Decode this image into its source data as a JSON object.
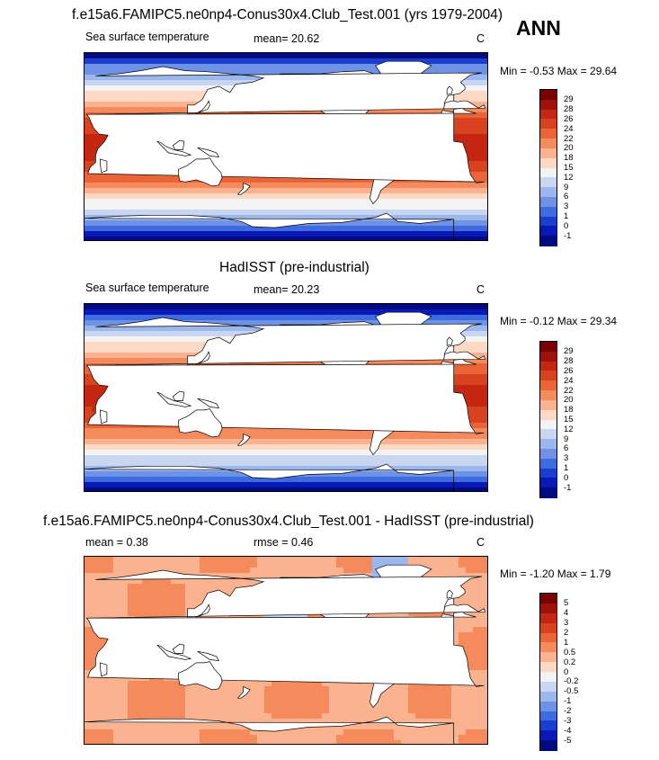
{
  "header": {
    "main_title": "f.e15a6.FAMIPC5.ne0np4-Conus30x4.Club_Test.001 (yrs 1979-2004)",
    "season": "ANN"
  },
  "chart_data": [
    {
      "type": "heatmap",
      "title": "f.e15a6.FAMIPC5.ne0np4-Conus30x4.Club_Test.001 (yrs 1979-2004)",
      "variable": "Sea surface temperature",
      "mean_text": "mean=  20.62",
      "units": "C",
      "minmax_text": "Min =  -0.53 Max =  29.64",
      "min": -0.53,
      "max": 29.64,
      "levels": [
        "29",
        "28",
        "26",
        "24",
        "22",
        "20",
        "18",
        "15",
        "12",
        "9",
        "6",
        "3",
        "1",
        "0",
        "-1"
      ],
      "colors": [
        "#7a0000",
        "#a01208",
        "#c42612",
        "#d9421e",
        "#eb6437",
        "#f58a5d",
        "#fbb28e",
        "#fdd9c4",
        "#f3f3f3",
        "#c8d6f2",
        "#9cb7ee",
        "#6e92e6",
        "#3f6be0",
        "#1a3fd0",
        "#0819b8",
        "#000a82"
      ]
    },
    {
      "type": "heatmap",
      "title": "HadISST (pre-industrial)",
      "variable": "Sea surface temperature",
      "mean_text": "mean=  20.23",
      "units": "C",
      "minmax_text": "Min =  -0.12 Max =  29.34",
      "min": -0.12,
      "max": 29.34,
      "levels": [
        "29",
        "28",
        "26",
        "24",
        "22",
        "20",
        "18",
        "15",
        "12",
        "9",
        "6",
        "3",
        "1",
        "0",
        "-1"
      ],
      "colors": [
        "#7a0000",
        "#a01208",
        "#c42612",
        "#d9421e",
        "#eb6437",
        "#f58a5d",
        "#fbb28e",
        "#fdd9c4",
        "#f3f3f3",
        "#c8d6f2",
        "#9cb7ee",
        "#6e92e6",
        "#3f6be0",
        "#1a3fd0",
        "#0819b8",
        "#000a82"
      ]
    },
    {
      "type": "heatmap",
      "title": "f.e15a6.FAMIPC5.ne0np4-Conus30x4.Club_Test.001 - HadISST (pre-industrial)",
      "mean_text": "mean =   0.38",
      "rmse_text": "rmse =   0.46",
      "units": "C",
      "minmax_text": "Min =  -1.20 Max =   1.79",
      "min": -1.2,
      "max": 1.79,
      "levels": [
        "5",
        "4",
        "3",
        "2",
        "1",
        "0.5",
        "0.2",
        "0",
        "-0.2",
        "-0.5",
        "-1",
        "-2",
        "-3",
        "-4",
        "-5"
      ],
      "colors": [
        "#7a0000",
        "#a01208",
        "#c42612",
        "#d9421e",
        "#eb6437",
        "#f58a5d",
        "#fbb28e",
        "#fdd9c4",
        "#f3f3f3",
        "#c8d6f2",
        "#9cb7ee",
        "#6e92e6",
        "#3f6be0",
        "#1a3fd0",
        "#0819b8",
        "#000a82"
      ]
    }
  ]
}
